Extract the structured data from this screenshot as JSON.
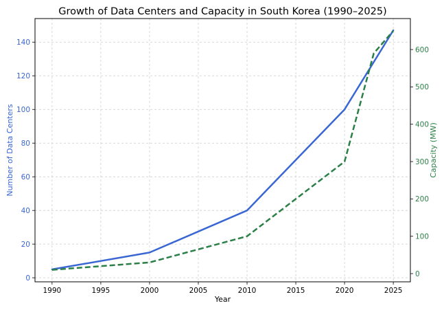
{
  "chart_data": {
    "type": "line",
    "title": "Growth of Data Centers and Capacity in South Korea (1990–2025)",
    "xlabel": "Year",
    "x_ticks": [
      1990,
      1995,
      2000,
      2005,
      2010,
      2015,
      2020,
      2025
    ],
    "xlim": [
      1988.25,
      2026.75
    ],
    "grid": true,
    "left_axis": {
      "label": "Number of Data Centers",
      "color": "#3a66d4",
      "ylim": [
        -2.4,
        154.0
      ],
      "ticks": [
        0,
        20,
        40,
        60,
        80,
        100,
        120,
        140
      ]
    },
    "right_axis": {
      "label": "Capacity (MW)",
      "color": "#2a7f47",
      "ylim": [
        -22.0,
        683.0
      ],
      "ticks": [
        0,
        100,
        200,
        300,
        400,
        500,
        600
      ]
    },
    "series": [
      {
        "axis": "left",
        "color": "#3a66d4",
        "style": "solid",
        "x": [
          1990,
          2000,
          2010,
          2020,
          2025
        ],
        "y": [
          5,
          15,
          40,
          100,
          147
        ]
      },
      {
        "axis": "right",
        "color": "#2a7f47",
        "style": "dashed",
        "x": [
          1990,
          2000,
          2010,
          2020,
          2023,
          2025
        ],
        "y": [
          10,
          30,
          100,
          300,
          590,
          650
        ]
      }
    ]
  }
}
